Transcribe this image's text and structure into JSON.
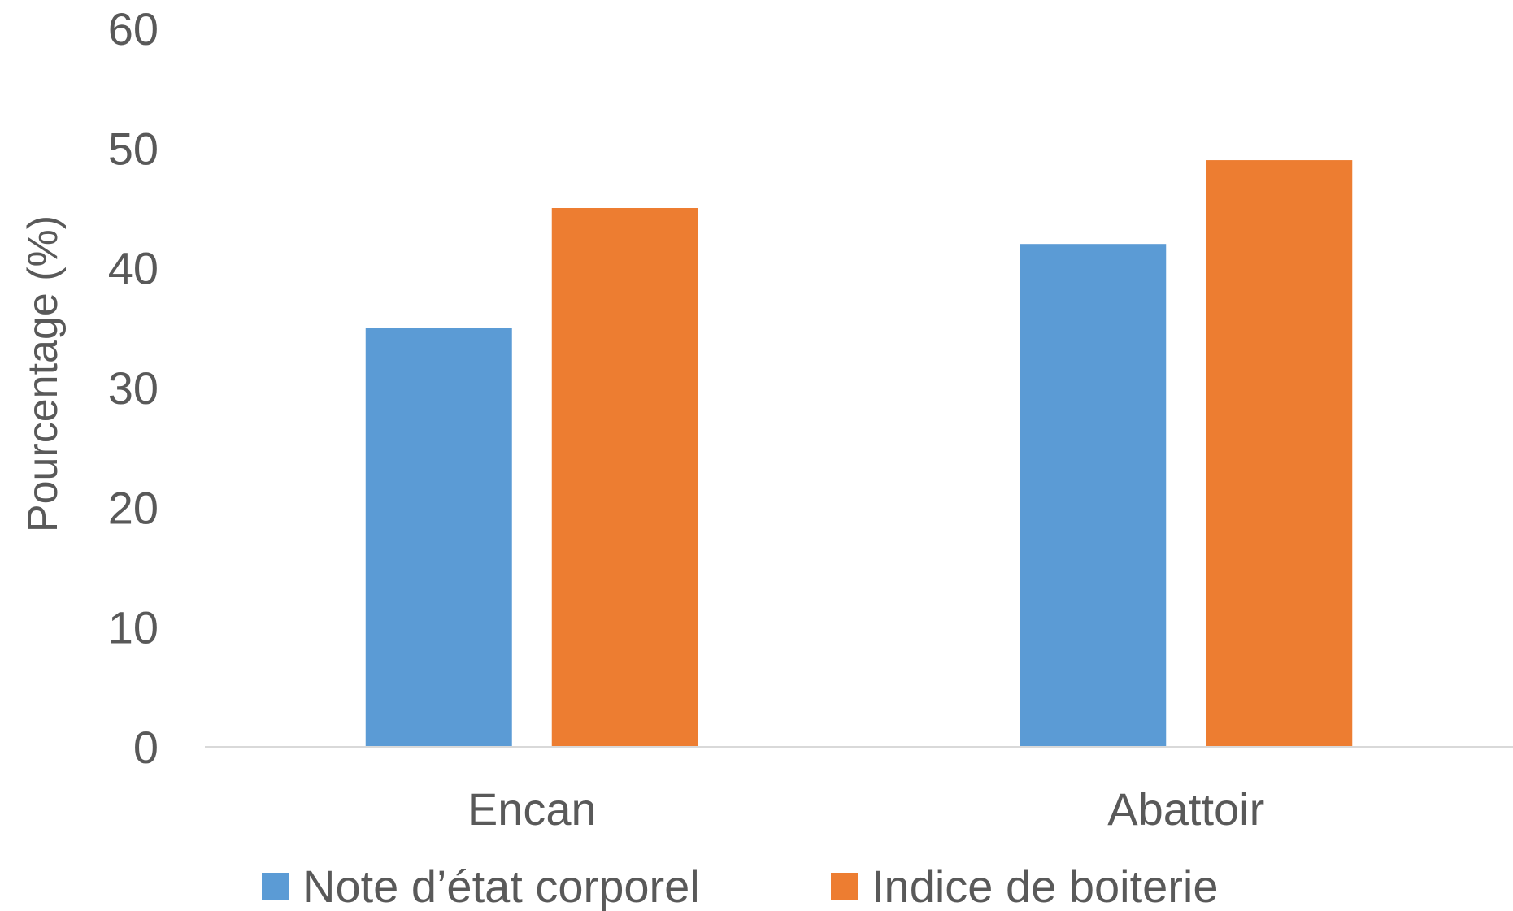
{
  "chart_data": {
    "type": "bar",
    "title": "",
    "xlabel": "",
    "ylabel": "Pourcentage (%)",
    "ylim": [
      0,
      60
    ],
    "yticks": [
      0,
      10,
      20,
      30,
      40,
      50,
      60
    ],
    "grid": false,
    "legend_position": "bottom",
    "categories": [
      "Encan",
      "Abattoir"
    ],
    "series": [
      {
        "name": "Note d’état corporel",
        "color": "#5B9BD5",
        "values": [
          35,
          42
        ]
      },
      {
        "name": "Indice de boiterie",
        "color": "#ED7D31",
        "values": [
          45,
          49
        ]
      }
    ]
  }
}
